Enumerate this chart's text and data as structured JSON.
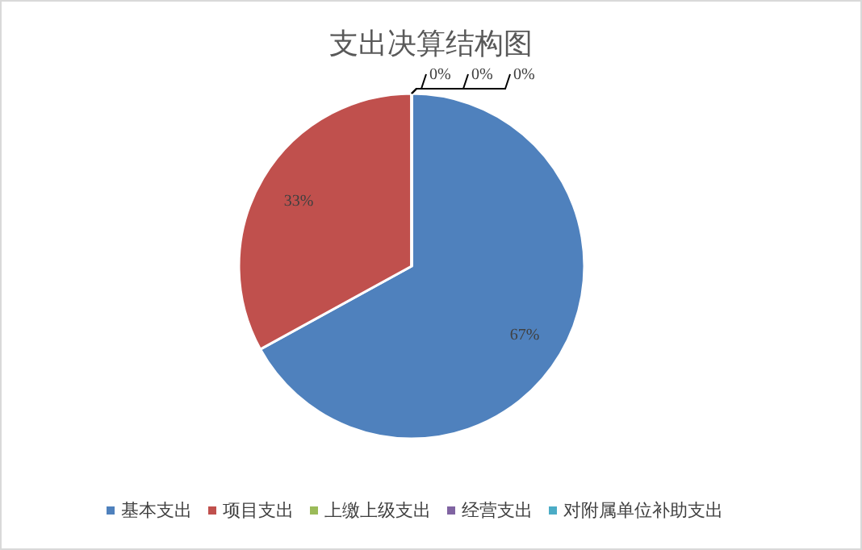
{
  "chart_data": {
    "type": "pie",
    "title": "支出决算结构图",
    "categories": [
      "基本支出",
      "项目支出",
      "上缴上级支出",
      "经营支出",
      "对附属单位补助支出"
    ],
    "values": [
      67,
      33,
      0,
      0,
      0
    ],
    "colors": [
      "#4f81bd",
      "#c0504d",
      "#9bbb59",
      "#8064a2",
      "#4bacc6"
    ],
    "value_labels": [
      "67%",
      "33%",
      "0%",
      "0%",
      "0%"
    ],
    "legend": "bottom"
  }
}
